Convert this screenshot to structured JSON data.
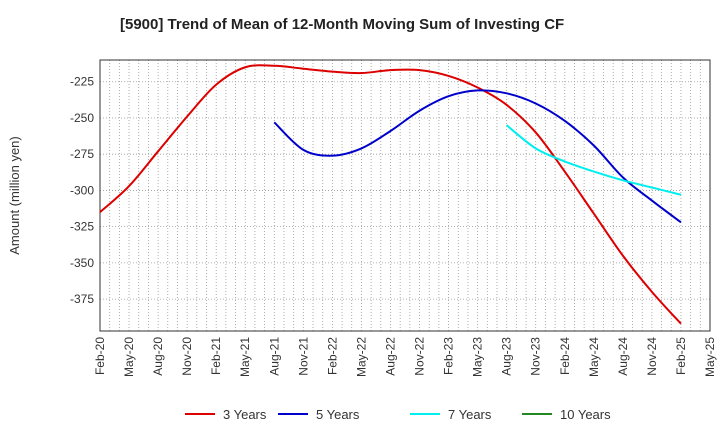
{
  "chart_data": {
    "type": "line",
    "title": "[5900]  Trend of Mean of 12-Month Moving Sum of Investing CF",
    "xlabel": "",
    "ylabel": "Amount (million yen)",
    "ylim": [
      -397,
      -210
    ],
    "yticks": [
      -225,
      -250,
      -275,
      -300,
      -325,
      -350,
      -375
    ],
    "x_tick_labels": [
      "Feb-20",
      "May-20",
      "Aug-20",
      "Nov-20",
      "Feb-21",
      "May-21",
      "Aug-21",
      "Nov-21",
      "Feb-22",
      "May-22",
      "Aug-22",
      "Nov-22",
      "Feb-23",
      "May-23",
      "Aug-23",
      "Nov-23",
      "Feb-24",
      "May-24",
      "Aug-24",
      "Nov-24",
      "Feb-25",
      "May-25"
    ],
    "grid": true,
    "legend_position": "bottom",
    "series": [
      {
        "name": "3 Years",
        "color": "#dd0000",
        "points": [
          [
            "Feb-20",
            -315
          ],
          [
            "May-20",
            -297
          ],
          [
            "Aug-20",
            -273
          ],
          [
            "Nov-20",
            -249
          ],
          [
            "Feb-21",
            -227
          ],
          [
            "May-21",
            -215
          ],
          [
            "Aug-21",
            -214
          ],
          [
            "Nov-21",
            -216
          ],
          [
            "Feb-22",
            -218
          ],
          [
            "May-22",
            -219
          ],
          [
            "Aug-22",
            -217
          ],
          [
            "Nov-22",
            -217
          ],
          [
            "Feb-23",
            -221
          ],
          [
            "May-23",
            -229
          ],
          [
            "Aug-23",
            -241
          ],
          [
            "Nov-23",
            -260
          ],
          [
            "Feb-24",
            -287
          ],
          [
            "May-24",
            -316
          ],
          [
            "Aug-24",
            -345
          ],
          [
            "Nov-24",
            -370
          ],
          [
            "Feb-25",
            -392
          ]
        ]
      },
      {
        "name": "5 Years",
        "color": "#0000cc",
        "points": [
          [
            "Aug-21",
            -253
          ],
          [
            "Nov-21",
            -272
          ],
          [
            "Feb-22",
            -276
          ],
          [
            "May-22",
            -271
          ],
          [
            "Aug-22",
            -259
          ],
          [
            "Nov-22",
            -245
          ],
          [
            "Feb-23",
            -235
          ],
          [
            "May-23",
            -231
          ],
          [
            "Aug-23",
            -233
          ],
          [
            "Nov-23",
            -240
          ],
          [
            "Feb-24",
            -252
          ],
          [
            "May-24",
            -269
          ],
          [
            "Aug-24",
            -291
          ],
          [
            "Nov-24",
            -307
          ],
          [
            "Feb-25",
            -322
          ]
        ]
      },
      {
        "name": "7 Years",
        "color": "#00eeee",
        "points": [
          [
            "Aug-23",
            -255
          ],
          [
            "Nov-23",
            -271
          ],
          [
            "Feb-24",
            -280
          ],
          [
            "May-24",
            -287
          ],
          [
            "Aug-24",
            -293
          ],
          [
            "Nov-24",
            -298
          ],
          [
            "Feb-25",
            -303
          ]
        ]
      },
      {
        "name": "10 Years",
        "color": "#228822",
        "points": []
      }
    ]
  }
}
